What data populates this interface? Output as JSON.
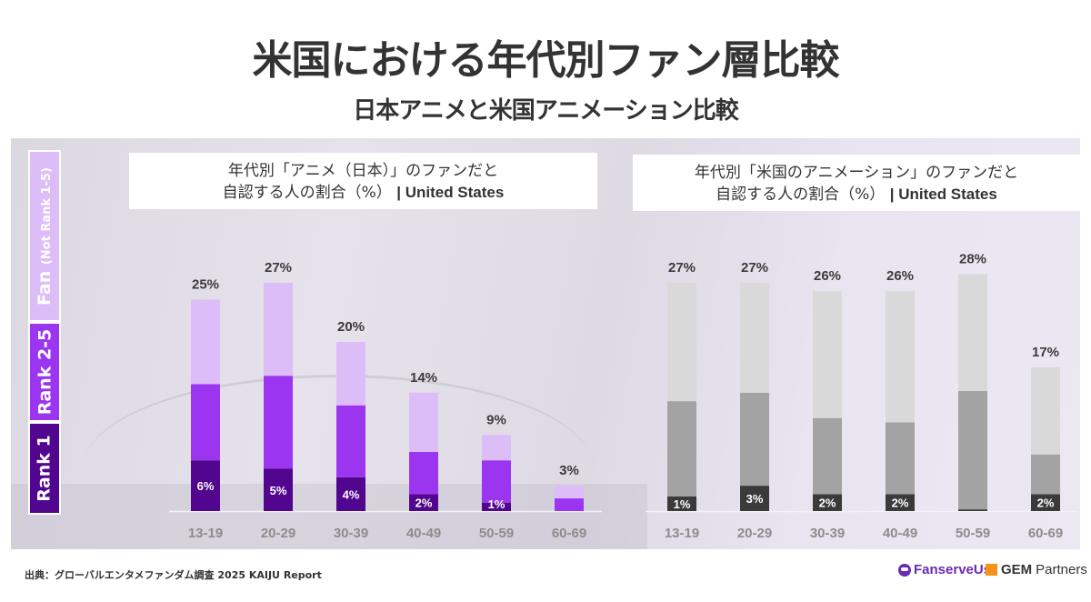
{
  "header": {
    "title": "米国における年代別ファン層比較",
    "subtitle": "日本アニメと米国アニメーション比較"
  },
  "legend": {
    "items": [
      {
        "label": "Fan",
        "sublabel": "(Not Rank 1-5)",
        "color": "#dcbdf8"
      },
      {
        "label": "Rank 2-5",
        "sublabel": "",
        "color": "#9b35f0"
      },
      {
        "label": "Rank 1",
        "sublabel": "",
        "color": "#52058f"
      }
    ]
  },
  "chart_data": [
    {
      "type": "bar",
      "stacked": true,
      "title_line1": "年代別「アニメ（日本）」のファンだと",
      "title_line2": "自認する人の割合（%）",
      "title_region": "| United States",
      "categories": [
        "13-19",
        "20-29",
        "30-39",
        "40-49",
        "50-59",
        "60-69"
      ],
      "series": [
        {
          "name": "Rank 1",
          "color": "#52058f",
          "values": [
            6,
            5,
            4,
            2,
            1,
            0
          ]
        },
        {
          "name": "Rank 2-5",
          "color": "#9b35f0",
          "values": [
            9,
            11,
            8.5,
            5,
            5,
            1.5
          ]
        },
        {
          "name": "Fan (Not Rank 1-5)",
          "color": "#dcbdf8",
          "values": [
            10,
            11,
            7.5,
            7,
            3,
            1.5
          ]
        }
      ],
      "totals": [
        25,
        27,
        20,
        14,
        9,
        3
      ],
      "total_labels": [
        "25%",
        "27%",
        "20%",
        "14%",
        "9%",
        "3%"
      ],
      "rank1_labels": [
        "6%",
        "5%",
        "4%",
        "2%",
        "1%",
        ""
      ],
      "ylim": [
        0,
        30
      ],
      "grid": false
    },
    {
      "type": "bar",
      "stacked": true,
      "title_line1": "年代別「米国のアニメーション」のファンだと",
      "title_line2": "自認する人の割合（%）",
      "title_region": "| United States",
      "categories": [
        "13-19",
        "20-29",
        "30-39",
        "40-49",
        "50-59",
        "60-69"
      ],
      "series": [
        {
          "name": "Rank 1",
          "color": "#3a3a3a",
          "values": [
            1,
            3,
            2,
            2,
            0.2,
            2
          ]
        },
        {
          "name": "Rank 2-5",
          "color": "#a3a3a3",
          "values": [
            12,
            11,
            9,
            8.5,
            14,
            4.7
          ]
        },
        {
          "name": "Fan (Not Rank 1-5)",
          "color": "#d9d9d9",
          "values": [
            14,
            13,
            15,
            15.5,
            13.8,
            10.3
          ]
        }
      ],
      "totals": [
        27,
        27,
        26,
        26,
        28,
        17
      ],
      "total_labels": [
        "27%",
        "27%",
        "26%",
        "26%",
        "28%",
        "17%"
      ],
      "rank1_labels": [
        "1%",
        "3%",
        "2%",
        "2%",
        "",
        "2%"
      ],
      "ylim": [
        0,
        30
      ],
      "grid": false
    }
  ],
  "footer": {
    "source": "出典：グローバルエンタメファンダム調査 2025 KAIJU Report",
    "logo1": "FanserveUs",
    "logo2_bold": "GEM",
    "logo2_rest": "Partners"
  }
}
